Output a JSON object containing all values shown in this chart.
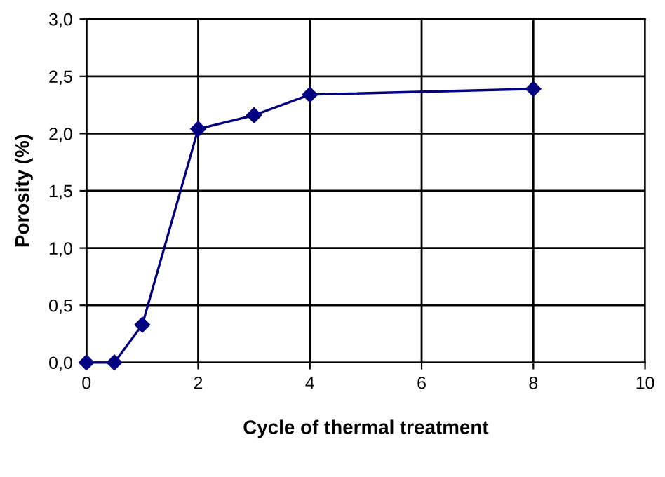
{
  "chart_data": {
    "type": "line",
    "xlabel": "Cycle of thermal treatment",
    "ylabel": "Porosity (%)",
    "x": [
      0,
      0.5,
      1,
      2,
      3,
      4,
      8
    ],
    "series": [
      {
        "color": "#000080",
        "values": [
          0.0,
          0.0,
          0.33,
          2.04,
          2.16,
          2.34,
          2.39
        ]
      }
    ],
    "xlim": [
      0,
      10
    ],
    "xticks": [
      0,
      2,
      4,
      6,
      8,
      10
    ],
    "ylim": [
      0,
      3
    ],
    "yticks": [
      {
        "value": 0,
        "label": "0,0"
      },
      {
        "value": 0.5,
        "label": "0,5"
      },
      {
        "value": 1,
        "label": "1,0"
      },
      {
        "value": 1.5,
        "label": "1,5"
      },
      {
        "value": 2,
        "label": "2,0"
      },
      {
        "value": 2.5,
        "label": "2,5"
      },
      {
        "value": 3,
        "label": "3,0"
      }
    ],
    "grid": true,
    "marker": "diamond",
    "line_style": "solid",
    "legend": false
  }
}
